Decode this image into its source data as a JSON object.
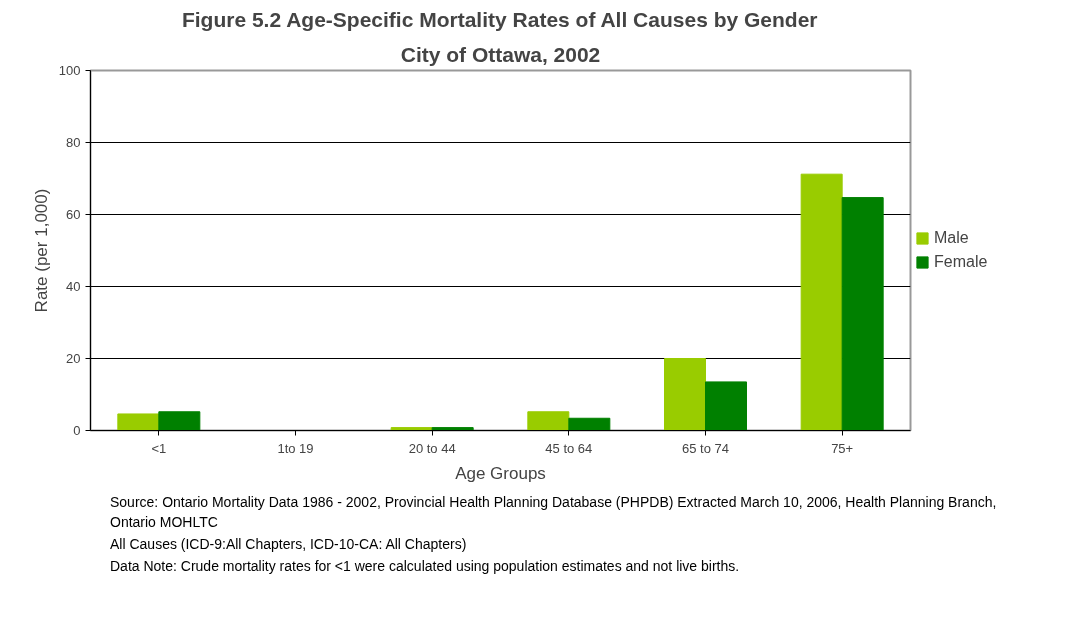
{
  "chart_data": {
    "type": "bar",
    "title": "Figure 5.2 Age-Specific Mortality Rates of All Causes by Gender",
    "subtitle": "City of Ottawa, 2002",
    "xlabel": "Age Groups",
    "ylabel": "Rate (per 1,000)",
    "categories": [
      "<1",
      "1to 19",
      "20 to 44",
      "45 to 64",
      "65 to 74",
      "75+"
    ],
    "series": [
      {
        "name": "Male",
        "color": "#99cc00",
        "values": [
          4.6,
          0,
          0.8,
          5.2,
          20.0,
          71.2
        ]
      },
      {
        "name": "Female",
        "color": "#008000",
        "values": [
          5.2,
          0,
          0.8,
          3.4,
          13.5,
          64.7
        ]
      }
    ],
    "ylim": [
      0,
      100
    ],
    "yticks": [
      0,
      20,
      40,
      60,
      80,
      100
    ],
    "grid": "y",
    "legend": "right",
    "annotations": [
      "Source: Ontario Mortality Data 1986 - 2002, Provincial Health Planning Database (PHPDB) Extracted March 10, 2006, Health Planning Branch, Ontario MOHLTC",
      "All Causes (ICD-9:All Chapters, ICD-10-CA: All Chapters)",
      "Data Note: Crude mortality rates for <1 were calculated using population estimates and not live births."
    ]
  }
}
